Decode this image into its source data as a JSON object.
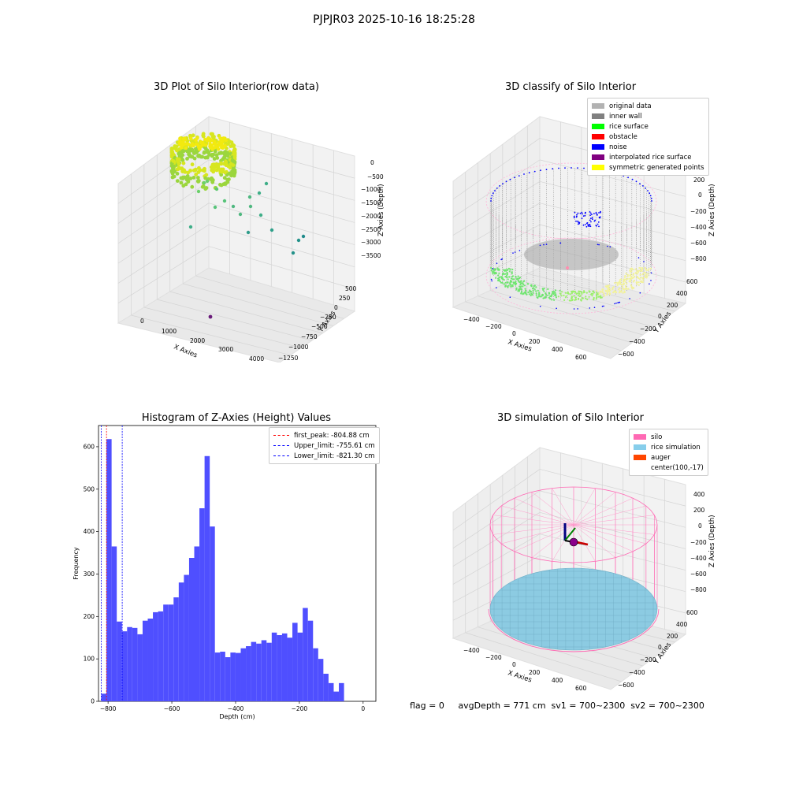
{
  "suptitle": "PJPJR03 2025-10-16 18:25:28",
  "footer": "flag = 0     avgDepth = 771 cm  sv1 = 700~2300  sv2 = 700~2300",
  "chart_data": [
    {
      "type": "scatter",
      "subtype": "3d",
      "title": "3D Plot of Silo Interior(row data)",
      "xlabel": "X Axies",
      "ylabel": "Y Axies",
      "zlabel": "Z Axies (Depth)",
      "xticks": [
        "0",
        "1000",
        "2000",
        "3000",
        "4000"
      ],
      "yticks": [
        "500",
        "250",
        "0",
        "−250",
        "−500",
        "−750",
        "−1000",
        "−1250"
      ],
      "zticks": [
        "0",
        "−500",
        "−1000",
        "−1500",
        "−2000",
        "−2500",
        "−3000",
        "−3500"
      ],
      "grid": true
    },
    {
      "type": "scatter",
      "subtype": "3d",
      "title": "3D classify of Silo Interior",
      "xlabel": "X Axies",
      "ylabel": "Y Axies",
      "zlabel": "Z Axies (Depth)",
      "xticks": [
        "−400",
        "−200",
        "0",
        "200",
        "400",
        "600"
      ],
      "yticks": [
        "600",
        "400",
        "200",
        "0",
        "−200",
        "−400",
        "−600"
      ],
      "zticks": [
        "200",
        "0",
        "−200",
        "−400",
        "−600",
        "−800"
      ],
      "legend": [
        {
          "name": "original data",
          "color": "#b2b2b2"
        },
        {
          "name": "inner wall",
          "color": "#808080"
        },
        {
          "name": "rice surface",
          "color": "#00ff00"
        },
        {
          "name": "obstacle",
          "color": "#ff0000"
        },
        {
          "name": "noise",
          "color": "#0000ff"
        },
        {
          "name": "interpolated rice surface",
          "color": "#800080"
        },
        {
          "name": "symmetric generated points",
          "color": "#ffff00"
        }
      ],
      "legend_position": "top-right",
      "grid": true
    },
    {
      "type": "bar",
      "subtype": "histogram",
      "title": "Histogram of Z-Axies (Height) Values",
      "xlabel": "Depth (cm)",
      "ylabel": "Frequency",
      "xlim": [
        -830,
        40
      ],
      "ylim": [
        0,
        650
      ],
      "xticks": [
        -800,
        -600,
        -400,
        -200,
        0
      ],
      "xtick_labels": [
        "−800",
        "−600",
        "−400",
        "−200",
        "0"
      ],
      "yticks": [
        0,
        100,
        200,
        300,
        400,
        500,
        600
      ],
      "bin_start": -821.3,
      "bin_width": 16.2,
      "color": "#4f4fff",
      "values": [
        18,
        618,
        365,
        188,
        165,
        175,
        173,
        158,
        190,
        195,
        210,
        212,
        228,
        228,
        245,
        280,
        298,
        338,
        365,
        455,
        578,
        412,
        115,
        117,
        104,
        115,
        114,
        125,
        130,
        140,
        136,
        144,
        138,
        162,
        156,
        160,
        150,
        185,
        162,
        220,
        190,
        125,
        100,
        65,
        43,
        23,
        43
      ],
      "vlines": [
        {
          "name": "first_peak: -804.88 cm",
          "x": -804.88,
          "color": "#ff0000"
        },
        {
          "name": "Upper_limit: -755.61 cm",
          "x": -755.61,
          "color": "#0000ff"
        },
        {
          "name": "Lower_limit: -821.30 cm",
          "x": -821.3,
          "color": "#0000ff"
        }
      ],
      "legend_position": "top-right"
    },
    {
      "type": "scatter",
      "subtype": "3d-surface",
      "title": "3D simulation of Silo Interior",
      "xlabel": "X Axies",
      "ylabel": "Y Axies",
      "zlabel": "Z Axies (Depth)",
      "xticks": [
        "−400",
        "−200",
        "0",
        "200",
        "400",
        "600"
      ],
      "yticks": [
        "600",
        "400",
        "200",
        "0",
        "−200",
        "−400",
        "−600"
      ],
      "zticks": [
        "400",
        "200",
        "0",
        "−200",
        "−400",
        "−600",
        "−800"
      ],
      "legend": [
        {
          "name": "silo",
          "color": "#ff69b4"
        },
        {
          "name": "rice simulation",
          "color": "#87ceeb"
        },
        {
          "name": "auger",
          "color": "#ff4500"
        },
        {
          "name": "center(100,-17)",
          "color": ""
        }
      ],
      "legend_position": "top-right",
      "grid": true
    }
  ]
}
